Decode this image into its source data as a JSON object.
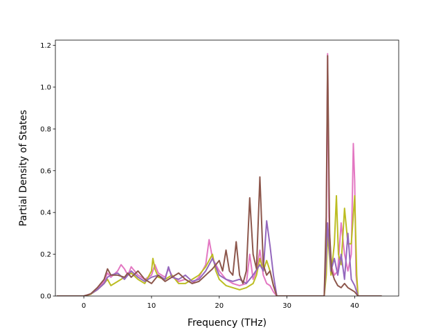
{
  "chart_data": {
    "type": "line",
    "xlabel": "Frequency (THz)",
    "ylabel": "Partial Density of States",
    "xlim": [
      -4.2,
      46.5
    ],
    "ylim": [
      0,
      1.225
    ],
    "xticks": [
      0,
      10,
      20,
      30,
      40
    ],
    "yticks": [
      0.0,
      0.2,
      0.4,
      0.6,
      0.8,
      1.0,
      1.2
    ],
    "xtick_labels": [
      "0",
      "10",
      "20",
      "30",
      "40"
    ],
    "ytick_labels": [
      "0.0",
      "0.2",
      "0.4",
      "0.6",
      "0.8",
      "1.0",
      "1.2"
    ],
    "grid": false,
    "series": [
      {
        "color": "#e377c2",
        "points": [
          [
            -4,
            0
          ],
          [
            0,
            0
          ],
          [
            1,
            0.01
          ],
          [
            2,
            0.035
          ],
          [
            3,
            0.07
          ],
          [
            3.5,
            0.11
          ],
          [
            4,
            0.09
          ],
          [
            5,
            0.12
          ],
          [
            5.5,
            0.15
          ],
          [
            6,
            0.13
          ],
          [
            6.5,
            0.1
          ],
          [
            7,
            0.14
          ],
          [
            8,
            0.1
          ],
          [
            9,
            0.08
          ],
          [
            10,
            0.1
          ],
          [
            10.5,
            0.15
          ],
          [
            11,
            0.11
          ],
          [
            12,
            0.09
          ],
          [
            12.5,
            0.13
          ],
          [
            13,
            0.1
          ],
          [
            14,
            0.07
          ],
          [
            15,
            0.08
          ],
          [
            16,
            0.06
          ],
          [
            17,
            0.09
          ],
          [
            18,
            0.15
          ],
          [
            18.5,
            0.27
          ],
          [
            19,
            0.18
          ],
          [
            20,
            0.12
          ],
          [
            21,
            0.08
          ],
          [
            22,
            0.06
          ],
          [
            23,
            0.05
          ],
          [
            24,
            0.06
          ],
          [
            24.5,
            0.2
          ],
          [
            25,
            0.08
          ],
          [
            25.5,
            0.12
          ],
          [
            26,
            0.22
          ],
          [
            26.5,
            0.1
          ],
          [
            27,
            0.06
          ],
          [
            27.5,
            0.05
          ],
          [
            28,
            0.02
          ],
          [
            28.5,
            0
          ],
          [
            35.5,
            0
          ],
          [
            35.8,
            0.3
          ],
          [
            36,
            1.16
          ],
          [
            36.2,
            0.38
          ],
          [
            36.5,
            0.15
          ],
          [
            37,
            0.1
          ],
          [
            37.5,
            0.12
          ],
          [
            38,
            0.35
          ],
          [
            38.5,
            0.2
          ],
          [
            39,
            0.12
          ],
          [
            39.5,
            0.2
          ],
          [
            39.8,
            0.73
          ],
          [
            40,
            0.55
          ],
          [
            40.2,
            0.1
          ],
          [
            40.5,
            0
          ],
          [
            44,
            0
          ]
        ]
      },
      {
        "color": "#bcbd22",
        "points": [
          [
            -4,
            0
          ],
          [
            0,
            0
          ],
          [
            1,
            0.008
          ],
          [
            2,
            0.03
          ],
          [
            3,
            0.06
          ],
          [
            3.5,
            0.08
          ],
          [
            4,
            0.05
          ],
          [
            5,
            0.07
          ],
          [
            6,
            0.09
          ],
          [
            7,
            0.11
          ],
          [
            8,
            0.08
          ],
          [
            9,
            0.06
          ],
          [
            10,
            0.12
          ],
          [
            10.2,
            0.18
          ],
          [
            10.5,
            0.13
          ],
          [
            11,
            0.09
          ],
          [
            12,
            0.08
          ],
          [
            13,
            0.1
          ],
          [
            14,
            0.06
          ],
          [
            15,
            0.06
          ],
          [
            16,
            0.08
          ],
          [
            17,
            0.1
          ],
          [
            18,
            0.14
          ],
          [
            19,
            0.2
          ],
          [
            19.5,
            0.12
          ],
          [
            20,
            0.08
          ],
          [
            21,
            0.05
          ],
          [
            22,
            0.04
          ],
          [
            23,
            0.03
          ],
          [
            24,
            0.04
          ],
          [
            25,
            0.06
          ],
          [
            25.5,
            0.1
          ],
          [
            26,
            0.18
          ],
          [
            26.5,
            0.12
          ],
          [
            27,
            0.17
          ],
          [
            27.5,
            0.12
          ],
          [
            28,
            0.05
          ],
          [
            28.5,
            0
          ],
          [
            35.5,
            0
          ],
          [
            35.8,
            0.1
          ],
          [
            36,
            0.3
          ],
          [
            36.5,
            0.1
          ],
          [
            37,
            0.25
          ],
          [
            37.3,
            0.48
          ],
          [
            37.6,
            0.2
          ],
          [
            38,
            0.15
          ],
          [
            38.5,
            0.42
          ],
          [
            39,
            0.25
          ],
          [
            39.5,
            0.25
          ],
          [
            40,
            0.48
          ],
          [
            40.3,
            0.1
          ],
          [
            40.5,
            0
          ],
          [
            44,
            0
          ]
        ]
      },
      {
        "color": "#9467bd",
        "points": [
          [
            -4,
            0
          ],
          [
            0,
            0
          ],
          [
            1,
            0.01
          ],
          [
            2,
            0.03
          ],
          [
            3,
            0.06
          ],
          [
            3.5,
            0.09
          ],
          [
            4,
            0.1
          ],
          [
            5,
            0.11
          ],
          [
            6,
            0.08
          ],
          [
            7,
            0.12
          ],
          [
            8,
            0.09
          ],
          [
            9,
            0.07
          ],
          [
            10,
            0.09
          ],
          [
            11,
            0.1
          ],
          [
            12,
            0.08
          ],
          [
            12.5,
            0.14
          ],
          [
            13,
            0.09
          ],
          [
            14,
            0.08
          ],
          [
            15,
            0.1
          ],
          [
            16,
            0.07
          ],
          [
            17,
            0.08
          ],
          [
            18,
            0.12
          ],
          [
            19,
            0.18
          ],
          [
            20,
            0.1
          ],
          [
            21,
            0.08
          ],
          [
            22,
            0.07
          ],
          [
            23,
            0.08
          ],
          [
            24,
            0.06
          ],
          [
            25,
            0.1
          ],
          [
            26,
            0.15
          ],
          [
            26.5,
            0.12
          ],
          [
            27,
            0.36
          ],
          [
            27.5,
            0.24
          ],
          [
            28,
            0.1
          ],
          [
            28.5,
            0
          ],
          [
            35.5,
            0
          ],
          [
            35.8,
            0.2
          ],
          [
            36,
            0.35
          ],
          [
            36.5,
            0.12
          ],
          [
            37,
            0.18
          ],
          [
            37.5,
            0.1
          ],
          [
            38,
            0.2
          ],
          [
            38.5,
            0.08
          ],
          [
            39,
            0.3
          ],
          [
            39.5,
            0.08
          ],
          [
            40,
            0.05
          ],
          [
            40.5,
            0
          ],
          [
            44,
            0
          ]
        ]
      },
      {
        "color": "#8c564b",
        "points": [
          [
            -4,
            0
          ],
          [
            0,
            0
          ],
          [
            1,
            0.01
          ],
          [
            2,
            0.04
          ],
          [
            3,
            0.08
          ],
          [
            3.5,
            0.13
          ],
          [
            4,
            0.1
          ],
          [
            5,
            0.1
          ],
          [
            6,
            0.09
          ],
          [
            6.5,
            0.11
          ],
          [
            7,
            0.09
          ],
          [
            8,
            0.12
          ],
          [
            9,
            0.08
          ],
          [
            10,
            0.06
          ],
          [
            11,
            0.1
          ],
          [
            12,
            0.07
          ],
          [
            13,
            0.09
          ],
          [
            14,
            0.11
          ],
          [
            15,
            0.08
          ],
          [
            16,
            0.06
          ],
          [
            17,
            0.07
          ],
          [
            18,
            0.1
          ],
          [
            19,
            0.13
          ],
          [
            20,
            0.17
          ],
          [
            20.5,
            0.12
          ],
          [
            21,
            0.22
          ],
          [
            21.5,
            0.12
          ],
          [
            22,
            0.1
          ],
          [
            22.5,
            0.26
          ],
          [
            23,
            0.1
          ],
          [
            23.5,
            0.06
          ],
          [
            24,
            0.12
          ],
          [
            24.5,
            0.47
          ],
          [
            25,
            0.2
          ],
          [
            25.5,
            0.13
          ],
          [
            26,
            0.57
          ],
          [
            26.5,
            0.15
          ],
          [
            27,
            0.1
          ],
          [
            27.5,
            0.12
          ],
          [
            28,
            0.05
          ],
          [
            28.5,
            0
          ],
          [
            35.5,
            0
          ],
          [
            35.8,
            0.38
          ],
          [
            36,
            1.15
          ],
          [
            36.3,
            0.3
          ],
          [
            36.6,
            0.12
          ],
          [
            37,
            0.08
          ],
          [
            37.5,
            0.05
          ],
          [
            38,
            0.04
          ],
          [
            38.5,
            0.06
          ],
          [
            39,
            0.04
          ],
          [
            40,
            0.02
          ],
          [
            40.5,
            0
          ],
          [
            44,
            0
          ]
        ]
      }
    ]
  }
}
